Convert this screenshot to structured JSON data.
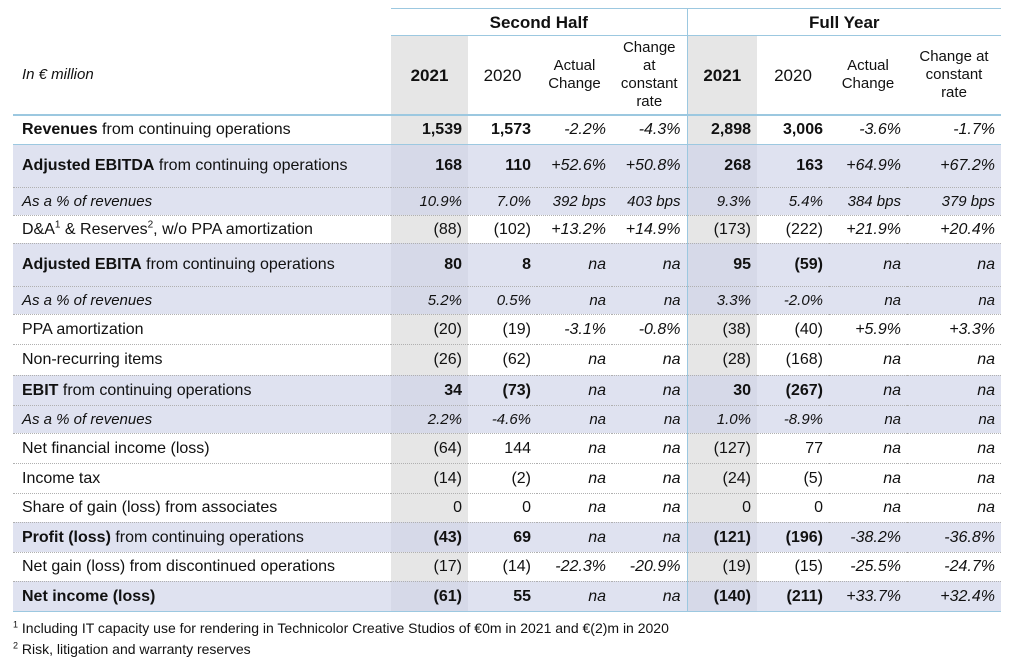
{
  "header": {
    "second_half": "Second Half",
    "full_year": "Full Year",
    "unit": "In € million",
    "y2021": "2021",
    "y2020": "2020",
    "actual_change": "Actual Change",
    "change_const": "Change at constant rate"
  },
  "rows": [
    {
      "bold": "Revenues",
      "rest": " from continuing operations",
      "v": [
        "1,539",
        "1,573",
        "-2.2%",
        "-4.3%",
        "2,898",
        "3,006",
        "-3.6%",
        "-1.7%"
      ]
    },
    {
      "bold": "Adjusted EBITDA",
      "rest": " from continuing operations",
      "v": [
        "168",
        "110",
        "+52.6%",
        "+50.8%",
        "268",
        "163",
        "+64.9%",
        "+67.2%"
      ]
    },
    {
      "label": "As a % of revenues",
      "v": [
        "10.9%",
        "7.0%",
        "392 bps",
        "403 bps",
        "9.3%",
        "5.4%",
        "384 bps",
        "379 bps"
      ]
    },
    {
      "p1": "D&A",
      "s1": "1",
      "p2": " & Reserves",
      "s2": "2",
      "p3": ", w/o PPA amortization",
      "v": [
        "(88)",
        "(102)",
        "+13.2%",
        "+14.9%",
        "(173)",
        "(222)",
        "+21.9%",
        "+20.4%"
      ]
    },
    {
      "bold": "Adjusted EBITA",
      "rest": " from continuing operations",
      "v": [
        "80",
        "8",
        "na",
        "na",
        "95",
        "(59)",
        "na",
        "na"
      ]
    },
    {
      "label": "As a % of revenues",
      "v": [
        "5.2%",
        "0.5%",
        "na",
        "na",
        "3.3%",
        "-2.0%",
        "na",
        "na"
      ]
    },
    {
      "label": "PPA amortization",
      "v": [
        "(20)",
        "(19)",
        "-3.1%",
        "-0.8%",
        "(38)",
        "(40)",
        "+5.9%",
        "+3.3%"
      ]
    },
    {
      "label": "Non-recurring items",
      "v": [
        "(26)",
        "(62)",
        "na",
        "na",
        "(28)",
        "(168)",
        "na",
        "na"
      ]
    },
    {
      "bold": "EBIT",
      "rest": " from continuing operations",
      "v": [
        "34",
        "(73)",
        "na",
        "na",
        "30",
        "(267)",
        "na",
        "na"
      ]
    },
    {
      "label": "As a % of revenues",
      "v": [
        "2.2%",
        "-4.6%",
        "na",
        "na",
        "1.0%",
        "-8.9%",
        "na",
        "na"
      ]
    },
    {
      "label": "Net financial income (loss)",
      "v": [
        "(64)",
        "144",
        "na",
        "na",
        "(127)",
        "77",
        "na",
        "na"
      ]
    },
    {
      "label": "Income tax",
      "v": [
        "(14)",
        "(2)",
        "na",
        "na",
        "(24)",
        "(5)",
        "na",
        "na"
      ]
    },
    {
      "label": "Share of gain (loss) from associates",
      "v": [
        "0",
        "0",
        "na",
        "na",
        "0",
        "0",
        "na",
        "na"
      ]
    },
    {
      "bold": "Profit (loss)",
      "rest": " from continuing operations",
      "v": [
        "(43)",
        "69",
        "na",
        "na",
        "(121)",
        "(196)",
        "-38.2%",
        "-36.8%"
      ]
    },
    {
      "label": "Net gain (loss) from discontinued operations",
      "v": [
        "(17)",
        "(14)",
        "-22.3%",
        "-20.9%",
        "(19)",
        "(15)",
        "-25.5%",
        "-24.7%"
      ]
    },
    {
      "bold": "Net income (loss)",
      "rest": "",
      "v": [
        "(61)",
        "55",
        "na",
        "na",
        "(140)",
        "(211)",
        "+33.7%",
        "+32.4%"
      ]
    }
  ],
  "footnotes": [
    {
      "num": "1",
      "text": " Including IT capacity use for rendering in Technicolor Creative Studios of €0m in 2021 and €(2)m in 2020"
    },
    {
      "num": "2",
      "text": " Risk, litigation and warranty reserves"
    }
  ]
}
